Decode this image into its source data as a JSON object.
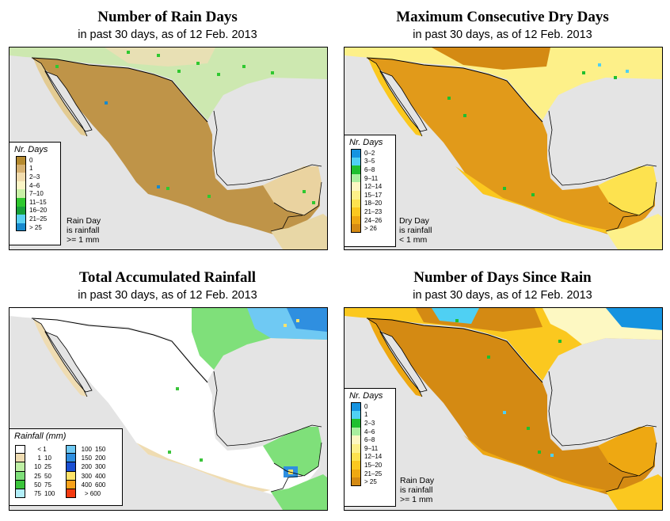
{
  "panels": [
    {
      "id": "rain-days",
      "title": "Number of Rain Days",
      "subtitle": "in past 30 days, as of  12 Feb. 2013",
      "legend_title": "Nr. Days",
      "legend": [
        {
          "label": "0",
          "color": "#b58a2f"
        },
        {
          "label": "1",
          "color": "#d6b172"
        },
        {
          "label": "2–3",
          "color": "#f1dcae"
        },
        {
          "label": "4–6",
          "color": "#fbf5c6"
        },
        {
          "label": "7–10",
          "color": "#c9f1a7"
        },
        {
          "label": "11–15",
          "color": "#2fc82f"
        },
        {
          "label": "16–20",
          "color": "#18a13a"
        },
        {
          "label": "21–25",
          "color": "#5ad2f2"
        },
        {
          "label": "> 25",
          "color": "#1789cd"
        }
      ],
      "note": [
        "Rain Day",
        "is rainfall",
        ">= 1 mm"
      ]
    },
    {
      "id": "max-dry-days",
      "title": "Maximum Consecutive Dry Days",
      "subtitle": "in past 30 days, as of  12 Feb. 2013",
      "legend_title": "Nr. Days",
      "legend": [
        {
          "label": "0–2",
          "color": "#1593e0"
        },
        {
          "label": "3–5",
          "color": "#4fd0f3"
        },
        {
          "label": "6–8",
          "color": "#1fbf2f"
        },
        {
          "label": "9–11",
          "color": "#a9ef9f"
        },
        {
          "label": "12–14",
          "color": "#fdf8c2"
        },
        {
          "label": "15–17",
          "color": "#fdf089"
        },
        {
          "label": "18–20",
          "color": "#fde24f"
        },
        {
          "label": "21–23",
          "color": "#fbc81f"
        },
        {
          "label": "24–26",
          "color": "#eea812"
        },
        {
          "label": "> 26",
          "color": "#d48a13"
        }
      ],
      "note": [
        "Dry Day",
        "is rainfall",
        "< 1 mm"
      ]
    },
    {
      "id": "total-rainfall",
      "title": "Total Accumulated Rainfall",
      "subtitle": "in past 30 days, as of  12 Feb. 2013",
      "legend_title": "Rainfall (mm)",
      "legend_left": [
        {
          "from": "",
          "to": "< 1",
          "color": "#ffffff"
        },
        {
          "from": "1",
          "to": "10",
          "color": "#efdcb2"
        },
        {
          "from": "10",
          "to": "25",
          "color": "#bff0a5"
        },
        {
          "from": "25",
          "to": "50",
          "color": "#7fe07a"
        },
        {
          "from": "50",
          "to": "75",
          "color": "#3bc43b"
        },
        {
          "from": "75",
          "to": "100",
          "color": "#b2eef8"
        }
      ],
      "legend_right": [
        {
          "from": "100",
          "to": "150",
          "color": "#6fc9f3"
        },
        {
          "from": "150",
          "to": "200",
          "color": "#2f8fe0"
        },
        {
          "from": "200",
          "to": "300",
          "color": "#1a4fd3"
        },
        {
          "from": "300",
          "to": "400",
          "color": "#fde36a"
        },
        {
          "from": "400",
          "to": "600",
          "color": "#f9a21a"
        },
        {
          "from": "",
          "to": "> 600",
          "color": "#f43a10"
        }
      ]
    },
    {
      "id": "days-since-rain",
      "title": "Number of Days Since Rain",
      "subtitle": "in past 30 days, as of  12 Feb. 2013",
      "legend_title": "Nr. Days",
      "legend": [
        {
          "label": "0",
          "color": "#1593e0"
        },
        {
          "label": "1",
          "color": "#4fd0f3"
        },
        {
          "label": "2–3",
          "color": "#1fbf2f"
        },
        {
          "label": "4–6",
          "color": "#a9ef9f"
        },
        {
          "label": "6–8",
          "color": "#fdf8c2"
        },
        {
          "label": "9–11",
          "color": "#fdf089"
        },
        {
          "label": "12–14",
          "color": "#fde24f"
        },
        {
          "label": "15–20",
          "color": "#fbc81f"
        },
        {
          "label": "21–25",
          "color": "#eea812"
        },
        {
          "label": "> 25",
          "color": "#d48a13"
        }
      ],
      "note": [
        "Rain Day",
        "is rainfall",
        ">= 1 mm"
      ]
    }
  ]
}
